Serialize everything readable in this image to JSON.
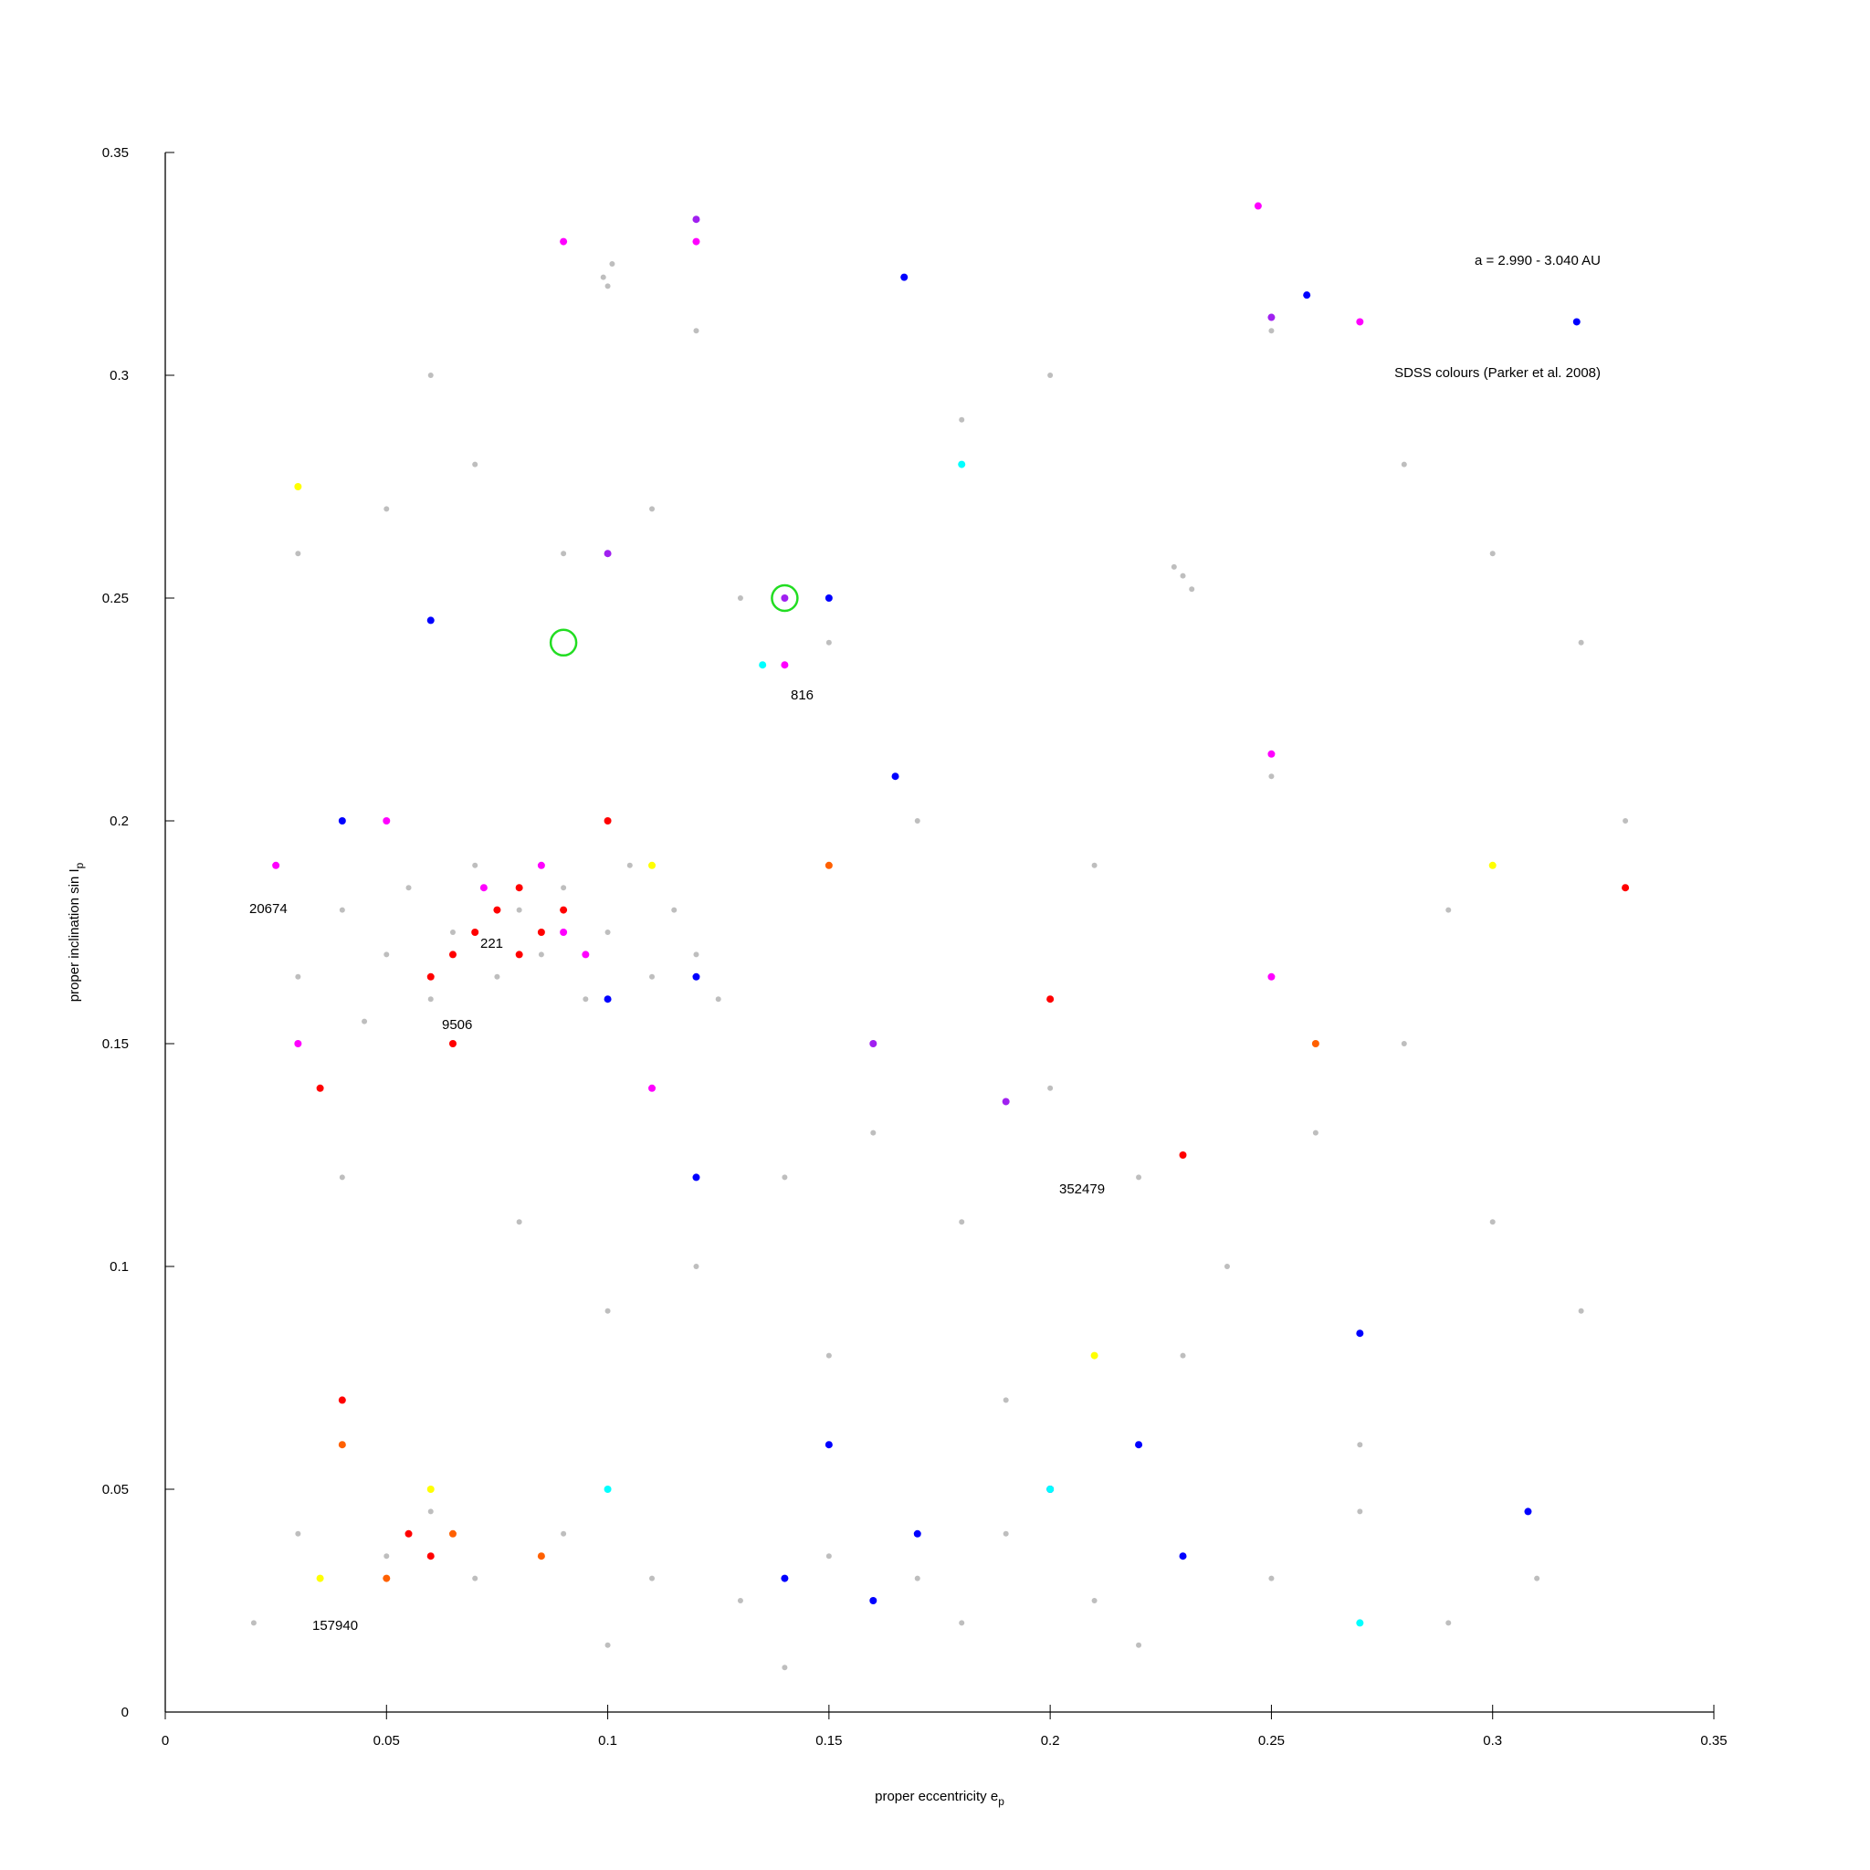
{
  "chart_data": {
    "type": "scatter",
    "xlabel": "proper eccentricity e",
    "xlabel_sub": "p",
    "ylabel": "proper inclination sin I",
    "ylabel_sub": "p",
    "xlim": [
      0,
      0.35
    ],
    "ylim": [
      0,
      0.35
    ],
    "xticks": [
      0,
      0.05,
      0.1,
      0.15,
      0.2,
      0.25,
      0.3,
      0.35
    ],
    "yticks": [
      0,
      0.05,
      0.1,
      0.15,
      0.2,
      0.25,
      0.3,
      0.35
    ],
    "grid": false,
    "annotations": [
      "a = 2.990 - 3.040 AU",
      "SDSS colours (Parker et al. 2008)",
      "816",
      "20674",
      "221",
      "9506",
      "352479",
      "157940"
    ],
    "series": [
      {
        "color": "#bebebe",
        "marker": "dot",
        "x": [
          0.04,
          0.05,
          0.055,
          0.06,
          0.065,
          0.07,
          0.075,
          0.08,
          0.085,
          0.09,
          0.095,
          0.1,
          0.105,
          0.11,
          0.115,
          0.12,
          0.125,
          0.03,
          0.025,
          0.045,
          0.03,
          0.05,
          0.07,
          0.09,
          0.11,
          0.13,
          0.15,
          0.1,
          0.101,
          0.099,
          0.23,
          0.232,
          0.228,
          0.06,
          0.12,
          0.18,
          0.2,
          0.25,
          0.28,
          0.3,
          0.32,
          0.04,
          0.08,
          0.12,
          0.14,
          0.16,
          0.18,
          0.2,
          0.22,
          0.24,
          0.26,
          0.28,
          0.3,
          0.32,
          0.1,
          0.15,
          0.19,
          0.23,
          0.27,
          0.17,
          0.21,
          0.25,
          0.29,
          0.33,
          0.03,
          0.05,
          0.06,
          0.07,
          0.09,
          0.11,
          0.13,
          0.15,
          0.17,
          0.19,
          0.21,
          0.23,
          0.25,
          0.27,
          0.29,
          0.31,
          0.02,
          0.1,
          0.14,
          0.18,
          0.22
        ],
        "values": [
          0.18,
          0.17,
          0.185,
          0.16,
          0.175,
          0.19,
          0.165,
          0.18,
          0.17,
          0.185,
          0.16,
          0.175,
          0.19,
          0.165,
          0.18,
          0.17,
          0.16,
          0.165,
          0.19,
          0.155,
          0.26,
          0.27,
          0.28,
          0.26,
          0.27,
          0.25,
          0.24,
          0.32,
          0.325,
          0.322,
          0.255,
          0.252,
          0.257,
          0.3,
          0.31,
          0.29,
          0.3,
          0.31,
          0.28,
          0.26,
          0.24,
          0.12,
          0.11,
          0.1,
          0.12,
          0.13,
          0.11,
          0.14,
          0.12,
          0.1,
          0.13,
          0.15,
          0.11,
          0.09,
          0.09,
          0.08,
          0.07,
          0.08,
          0.06,
          0.2,
          0.19,
          0.21,
          0.18,
          0.2,
          0.04,
          0.035,
          0.045,
          0.03,
          0.04,
          0.03,
          0.025,
          0.035,
          0.03,
          0.04,
          0.025,
          0.035,
          0.03,
          0.045,
          0.02,
          0.03,
          0.02,
          0.015,
          0.01,
          0.02,
          0.015
        ]
      },
      {
        "color": "#ff0000",
        "marker": "dot",
        "x": [
          0.07,
          0.075,
          0.08,
          0.085,
          0.065,
          0.06,
          0.08,
          0.09,
          0.04,
          0.06,
          0.055,
          0.1,
          0.23,
          0.33,
          0.2,
          0.065,
          0.035
        ],
        "values": [
          0.175,
          0.18,
          0.185,
          0.175,
          0.17,
          0.165,
          0.17,
          0.18,
          0.07,
          0.035,
          0.04,
          0.2,
          0.125,
          0.185,
          0.16,
          0.15,
          0.14
        ]
      },
      {
        "color": "#ff00ff",
        "marker": "dot",
        "x": [
          0.085,
          0.09,
          0.072,
          0.095,
          0.12,
          0.09,
          0.247,
          0.14,
          0.25,
          0.03,
          0.025,
          0.05,
          0.11,
          0.25,
          0.27
        ],
        "values": [
          0.19,
          0.175,
          0.185,
          0.17,
          0.33,
          0.33,
          0.338,
          0.235,
          0.215,
          0.15,
          0.19,
          0.2,
          0.14,
          0.165,
          0.312
        ]
      },
      {
        "color": "#0000ff",
        "marker": "dot",
        "x": [
          0.1,
          0.12,
          0.15,
          0.167,
          0.258,
          0.319,
          0.12,
          0.15,
          0.17,
          0.2,
          0.14,
          0.16,
          0.23,
          0.308,
          0.165,
          0.06,
          0.04,
          0.27,
          0.22
        ],
        "values": [
          0.16,
          0.165,
          0.25,
          0.322,
          0.318,
          0.312,
          0.12,
          0.06,
          0.04,
          0.05,
          0.03,
          0.025,
          0.035,
          0.045,
          0.21,
          0.245,
          0.2,
          0.085,
          0.06
        ]
      },
      {
        "color": "#a020f0",
        "marker": "dot",
        "x": [
          0.12,
          0.25,
          0.14,
          0.19,
          0.16,
          0.1
        ],
        "values": [
          0.335,
          0.313,
          0.25,
          0.137,
          0.15,
          0.26
        ]
      },
      {
        "color": "#ff6000",
        "marker": "dot",
        "x": [
          0.05,
          0.065,
          0.085,
          0.04,
          0.15,
          0.26
        ],
        "values": [
          0.03,
          0.04,
          0.035,
          0.06,
          0.19,
          0.15
        ]
      },
      {
        "color": "#ffff00",
        "marker": "dot",
        "x": [
          0.035,
          0.06,
          0.21,
          0.03,
          0.11,
          0.3
        ],
        "values": [
          0.03,
          0.05,
          0.08,
          0.275,
          0.19,
          0.19
        ]
      },
      {
        "color": "#00ffff",
        "marker": "dot",
        "x": [
          0.135,
          0.2,
          0.27,
          0.1,
          0.18
        ],
        "values": [
          0.235,
          0.05,
          0.02,
          0.05,
          0.28
        ]
      },
      {
        "color": "#22dd22",
        "marker": "ring",
        "x": [
          0.09,
          0.14
        ],
        "values": [
          0.24,
          0.25
        ]
      }
    ]
  }
}
